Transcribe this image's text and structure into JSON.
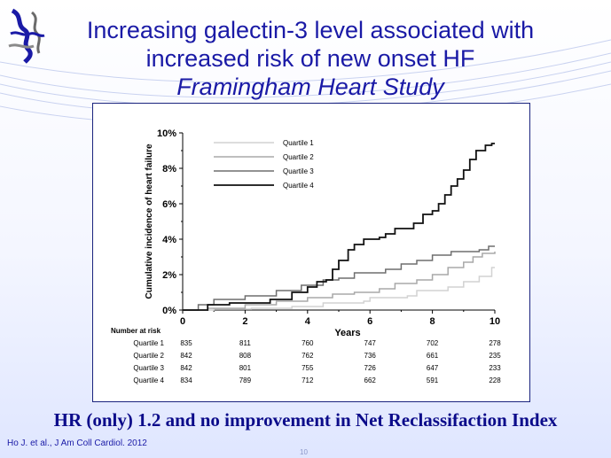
{
  "slide": {
    "title_line1": "Increasing galectin-3 level associated with",
    "title_line2": "increased risk of new onset HF",
    "title_line3": "Framingham Heart Study",
    "message": "HR (only) 1.2 and no improvement in Net Reclassifaction Index",
    "citation": "Ho J. et al., J Am Coll Cardiol. 2012",
    "page_number": "10"
  },
  "chart_data": {
    "type": "line",
    "xlabel": "Years",
    "ylabel": "Cumulative incidence of heart failure",
    "xlim": [
      0,
      10
    ],
    "ylim": [
      0,
      10
    ],
    "x_ticks": [
      "0",
      "2",
      "4",
      "6",
      "8",
      "10"
    ],
    "y_ticks": [
      "0%",
      "2%",
      "4%",
      "6%",
      "8%",
      "10%"
    ],
    "legend_position": "top-center",
    "series": [
      {
        "name": "Quartile 1",
        "color": "#d2d2d2",
        "points": [
          [
            0,
            0
          ],
          [
            1.0,
            0.05
          ],
          [
            2.2,
            0.1
          ],
          [
            3.5,
            0.2
          ],
          [
            4.5,
            0.4
          ],
          [
            5.8,
            0.5
          ],
          [
            6.0,
            0.7
          ],
          [
            7.2,
            0.8
          ],
          [
            7.5,
            1.1
          ],
          [
            8.5,
            1.3
          ],
          [
            9.0,
            1.6
          ],
          [
            9.5,
            1.9
          ],
          [
            9.9,
            2.4
          ],
          [
            10,
            2.4
          ]
        ]
      },
      {
        "name": "Quartile 2",
        "color": "#a8a8a8",
        "points": [
          [
            0,
            0
          ],
          [
            0.8,
            0.1
          ],
          [
            2.0,
            0.3
          ],
          [
            3.0,
            0.5
          ],
          [
            4.0,
            0.7
          ],
          [
            4.8,
            0.9
          ],
          [
            5.5,
            1.0
          ],
          [
            6.3,
            1.2
          ],
          [
            6.8,
            1.5
          ],
          [
            7.5,
            1.7
          ],
          [
            8.0,
            2.0
          ],
          [
            8.5,
            2.4
          ],
          [
            9.0,
            2.7
          ],
          [
            9.3,
            3.0
          ],
          [
            9.6,
            3.2
          ],
          [
            10,
            3.3
          ]
        ]
      },
      {
        "name": "Quartile 3",
        "color": "#6e6e6e",
        "points": [
          [
            0,
            0
          ],
          [
            0.5,
            0.3
          ],
          [
            1.0,
            0.6
          ],
          [
            2.0,
            0.8
          ],
          [
            3.0,
            1.1
          ],
          [
            3.8,
            1.4
          ],
          [
            4.5,
            1.7
          ],
          [
            5.0,
            1.8
          ],
          [
            5.5,
            2.1
          ],
          [
            6.5,
            2.3
          ],
          [
            7.0,
            2.6
          ],
          [
            7.5,
            2.8
          ],
          [
            8.0,
            3.1
          ],
          [
            8.6,
            3.3
          ],
          [
            9.5,
            3.4
          ],
          [
            9.8,
            3.6
          ],
          [
            10,
            3.6
          ]
        ]
      },
      {
        "name": "Quartile 4",
        "color": "#111111",
        "points": [
          [
            0,
            0
          ],
          [
            0.8,
            0.3
          ],
          [
            1.5,
            0.4
          ],
          [
            2.8,
            0.6
          ],
          [
            3.5,
            1.0
          ],
          [
            4.0,
            1.3
          ],
          [
            4.3,
            1.6
          ],
          [
            4.6,
            1.7
          ],
          [
            4.8,
            2.3
          ],
          [
            5.0,
            2.8
          ],
          [
            5.3,
            3.4
          ],
          [
            5.5,
            3.7
          ],
          [
            5.8,
            4.0
          ],
          [
            6.3,
            4.1
          ],
          [
            6.5,
            4.3
          ],
          [
            6.8,
            4.6
          ],
          [
            7.2,
            4.6
          ],
          [
            7.4,
            4.9
          ],
          [
            7.7,
            5.4
          ],
          [
            8.0,
            5.6
          ],
          [
            8.2,
            6.0
          ],
          [
            8.4,
            6.5
          ],
          [
            8.6,
            7.0
          ],
          [
            8.8,
            7.4
          ],
          [
            9.0,
            7.9
          ],
          [
            9.2,
            8.5
          ],
          [
            9.4,
            9.0
          ],
          [
            9.7,
            9.3
          ],
          [
            9.9,
            9.4
          ],
          [
            10,
            9.4
          ]
        ]
      }
    ],
    "at_risk": {
      "title": "Number at risk",
      "timepoints": [
        0,
        2,
        4,
        6,
        8,
        10
      ],
      "rows": [
        {
          "label": "Quartile 1",
          "values": [
            "835",
            "811",
            "760",
            "747",
            "702",
            "278"
          ]
        },
        {
          "label": "Quartile 2",
          "values": [
            "842",
            "808",
            "762",
            "736",
            "661",
            "235"
          ]
        },
        {
          "label": "Quartile 3",
          "values": [
            "842",
            "801",
            "755",
            "726",
            "647",
            "233"
          ]
        },
        {
          "label": "Quartile 4",
          "values": [
            "834",
            "789",
            "712",
            "662",
            "591",
            "228"
          ]
        }
      ]
    }
  }
}
